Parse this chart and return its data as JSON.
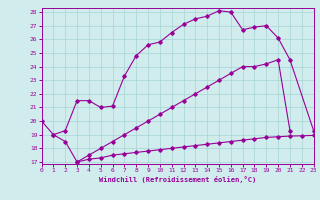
{
  "line1_x": [
    0,
    1,
    2,
    3,
    4,
    5,
    6,
    7,
    8,
    9,
    10,
    11,
    12,
    13,
    14,
    15,
    16,
    17,
    18,
    19,
    20,
    21,
    23
  ],
  "line1_y": [
    20.0,
    19.0,
    19.3,
    21.5,
    21.5,
    21.0,
    21.1,
    23.3,
    24.8,
    25.6,
    25.8,
    26.5,
    27.1,
    27.5,
    27.7,
    28.1,
    28.0,
    26.7,
    26.9,
    27.0,
    26.1,
    24.5,
    19.3
  ],
  "line2_x": [
    1,
    2,
    3,
    4,
    5,
    6,
    7,
    8,
    9,
    10,
    11,
    12,
    13,
    14,
    15,
    16,
    17,
    18,
    19,
    20,
    21
  ],
  "line2_y": [
    19.0,
    18.5,
    17.0,
    17.5,
    18.0,
    18.5,
    19.0,
    19.5,
    20.0,
    20.5,
    21.0,
    21.5,
    22.0,
    22.5,
    23.0,
    23.5,
    24.0,
    24.0,
    24.2,
    24.5,
    19.3
  ],
  "line3_x": [
    3,
    4,
    5,
    6,
    7,
    8,
    9,
    10,
    11,
    12,
    13,
    14,
    15,
    16,
    17,
    18,
    19,
    20,
    21,
    22,
    23
  ],
  "line3_y": [
    17.0,
    17.2,
    17.3,
    17.5,
    17.6,
    17.7,
    17.8,
    17.9,
    18.0,
    18.1,
    18.2,
    18.3,
    18.4,
    18.5,
    18.6,
    18.7,
    18.8,
    18.85,
    18.9,
    18.92,
    18.95
  ],
  "color": "#990099",
  "bg_color": "#d0ecec",
  "grid_color": "#a8d4d4",
  "xlabel": "Windchill (Refroidissement éolien,°C)",
  "ylim_min": 17,
  "ylim_max": 28,
  "xlim_min": 0,
  "xlim_max": 23,
  "yticks": [
    17,
    18,
    19,
    20,
    21,
    22,
    23,
    24,
    25,
    26,
    27,
    28
  ],
  "xticks": [
    0,
    1,
    2,
    3,
    4,
    5,
    6,
    7,
    8,
    9,
    10,
    11,
    12,
    13,
    14,
    15,
    16,
    17,
    18,
    19,
    20,
    21,
    22,
    23
  ]
}
